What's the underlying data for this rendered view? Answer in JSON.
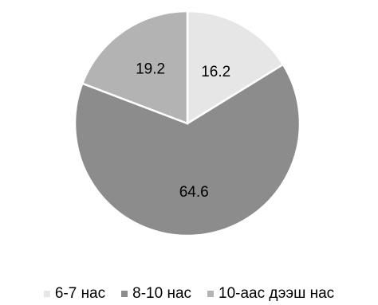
{
  "chart_data": {
    "type": "pie",
    "categories": [
      "6-7 нас",
      "8-10 нас",
      "10-аас дээш нас"
    ],
    "values": [
      16.2,
      64.6,
      19.2
    ],
    "data_labels": [
      "16.2",
      "64.6",
      "19.2"
    ],
    "colors": [
      "#e6e6e6",
      "#8c8c8c",
      "#b3b3b3"
    ],
    "start_angle": "12 o'clock",
    "direction": "clockwise",
    "legend": "bottom",
    "title": "",
    "xlabel": "",
    "ylabel": ""
  }
}
